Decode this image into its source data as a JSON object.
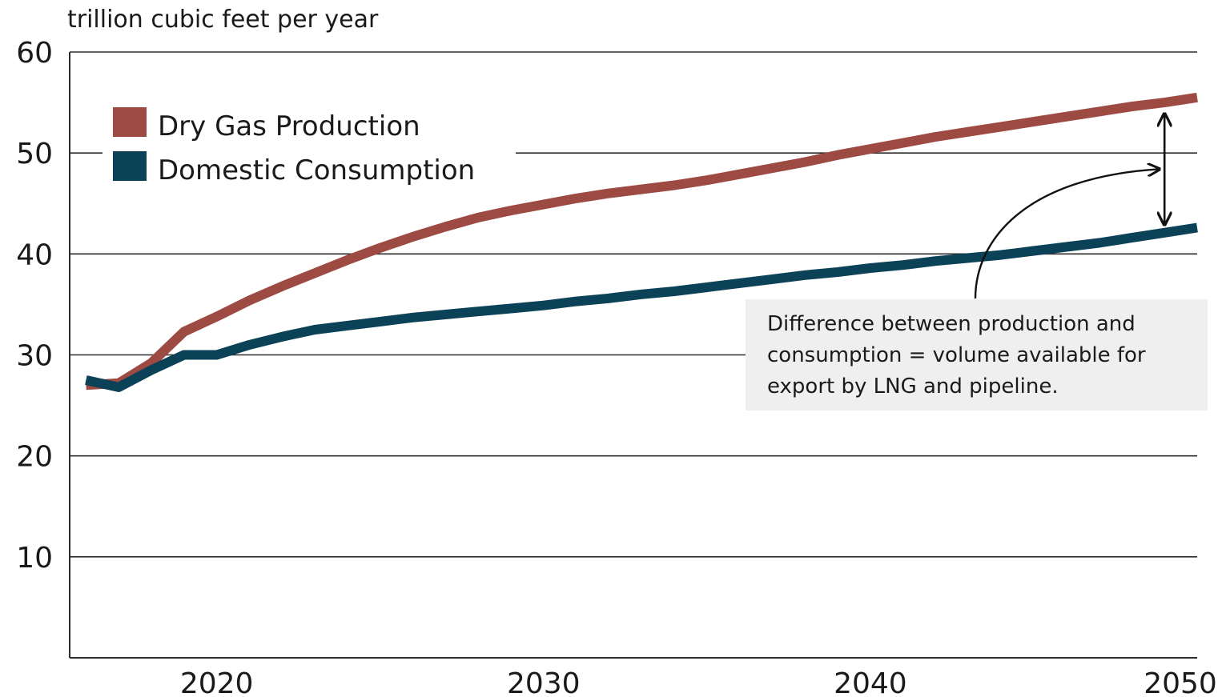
{
  "chart_data": {
    "type": "line",
    "title": "",
    "ylabel": "trillion cubic feet per year",
    "xlabel": "",
    "xlim": [
      2015.5,
      2050
    ],
    "ylim": [
      0,
      60
    ],
    "x_ticks": [
      2020,
      2030,
      2040,
      2050
    ],
    "y_ticks": [
      10,
      20,
      30,
      40,
      50,
      60
    ],
    "grid": "horizontal",
    "legend_position": "top-left",
    "series": [
      {
        "name": "Dry Gas Production",
        "color": "#9c4a42",
        "x": [
          2016,
          2017,
          2018,
          2019,
          2020,
          2021,
          2022,
          2023,
          2024,
          2025,
          2026,
          2027,
          2028,
          2029,
          2030,
          2031,
          2032,
          2033,
          2034,
          2035,
          2036,
          2037,
          2038,
          2039,
          2040,
          2041,
          2042,
          2043,
          2044,
          2045,
          2046,
          2047,
          2048,
          2049,
          2050
        ],
        "values": [
          27.0,
          27.2,
          29.2,
          32.3,
          33.8,
          35.4,
          36.8,
          38.1,
          39.4,
          40.6,
          41.7,
          42.7,
          43.6,
          44.3,
          44.9,
          45.5,
          46.0,
          46.4,
          46.8,
          47.3,
          47.9,
          48.5,
          49.1,
          49.8,
          50.4,
          51.0,
          51.6,
          52.1,
          52.6,
          53.1,
          53.6,
          54.1,
          54.6,
          55.0,
          55.5
        ]
      },
      {
        "name": "Domestic Consumption",
        "color": "#0c4257",
        "x": [
          2016,
          2017,
          2018,
          2019,
          2020,
          2021,
          2022,
          2023,
          2024,
          2025,
          2026,
          2027,
          2028,
          2029,
          2030,
          2031,
          2032,
          2033,
          2034,
          2035,
          2036,
          2037,
          2038,
          2039,
          2040,
          2041,
          2042,
          2043,
          2044,
          2045,
          2046,
          2047,
          2048,
          2049,
          2050
        ],
        "values": [
          27.5,
          26.8,
          28.5,
          30.0,
          30.0,
          31.0,
          31.8,
          32.5,
          32.9,
          33.3,
          33.7,
          34.0,
          34.3,
          34.6,
          34.9,
          35.3,
          35.6,
          36.0,
          36.3,
          36.7,
          37.1,
          37.5,
          37.9,
          38.2,
          38.6,
          38.9,
          39.3,
          39.6,
          39.9,
          40.3,
          40.7,
          41.1,
          41.6,
          42.1,
          42.6
        ]
      }
    ],
    "annotation": {
      "lines": [
        "Difference between production and",
        "consumption = volume available for",
        "export by LNG and pipeline."
      ],
      "arrow_x": 2049
    }
  }
}
